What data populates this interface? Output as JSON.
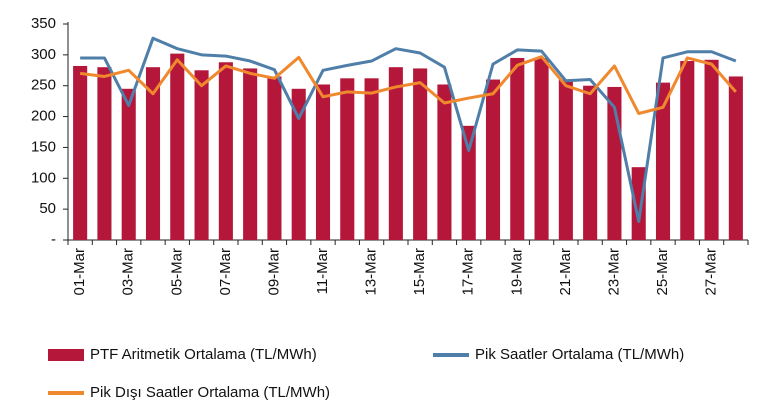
{
  "chart_data": {
    "type": "bar_line",
    "categories": [
      "01-Mar",
      null,
      "03-Mar",
      null,
      "05-Mar",
      null,
      "07-Mar",
      null,
      "09-Mar",
      null,
      "11-Mar",
      null,
      "13-Mar",
      null,
      "15-Mar",
      null,
      "17-Mar",
      null,
      "19-Mar",
      null,
      "21-Mar",
      null,
      "23-Mar",
      null,
      "25-Mar",
      null,
      "27-Mar",
      null
    ],
    "series": [
      {
        "name": "PTF Aritmetik Ortalama (TL/MWh)",
        "type": "bar",
        "color": "#b5173a",
        "values": [
          282,
          280,
          245,
          280,
          302,
          275,
          288,
          278,
          265,
          245,
          252,
          262,
          262,
          280,
          278,
          252,
          185,
          260,
          295,
          295,
          260,
          250,
          248,
          118,
          255,
          290,
          292,
          265
        ]
      },
      {
        "name": "Pik Saatler Ortalama (TL/MWh)",
        "type": "line",
        "color": "#4f7fa8",
        "values": [
          295,
          295,
          218,
          327,
          310,
          300,
          298,
          290,
          276,
          197,
          275,
          283,
          290,
          310,
          303,
          280,
          145,
          285,
          308,
          306,
          258,
          260,
          215,
          30,
          295,
          305,
          305,
          290
        ]
      },
      {
        "name": "Pik Dışı Saatler Ortalama (TL/MWh)",
        "type": "line",
        "color": "#f0882e",
        "values": [
          270,
          265,
          275,
          237,
          292,
          250,
          282,
          270,
          262,
          296,
          232,
          240,
          238,
          248,
          255,
          222,
          230,
          237,
          283,
          297,
          250,
          237,
          282,
          205,
          215,
          295,
          285,
          240
        ]
      }
    ],
    "ylim": [
      0,
      350
    ],
    "yticks": [
      {
        "value": 0,
        "label": "-"
      },
      50,
      100,
      150,
      200,
      250,
      300,
      350
    ],
    "grid": false
  }
}
